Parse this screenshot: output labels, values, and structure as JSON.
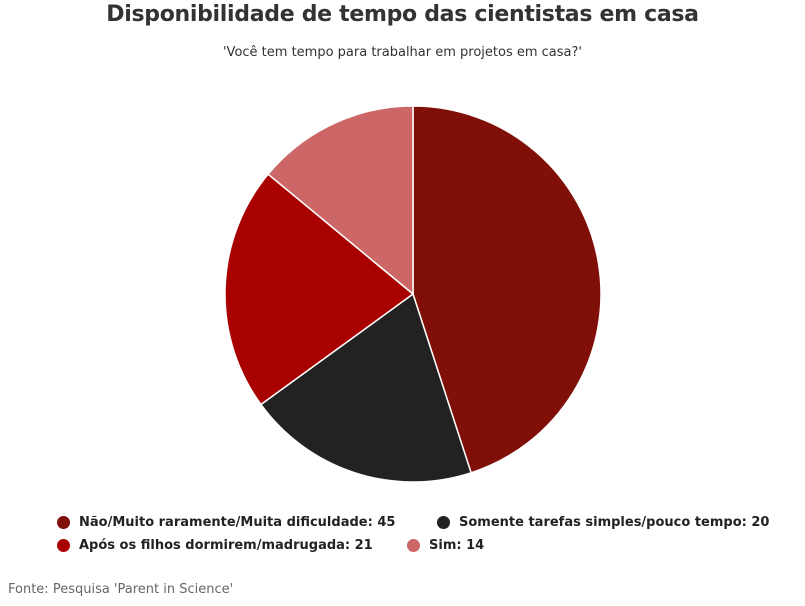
{
  "chart_data": {
    "type": "pie",
    "title": "Disponibilidade de tempo das cientistas em casa",
    "subtitle": "'Você tem tempo para trabalhar em projetos em casa?'",
    "slices": [
      {
        "label": "Não/Muito raramente/Muita dificuldade",
        "value": 45,
        "legend_text": "Não/Muito raramente/Muita dificuldade: 45",
        "color": "#7f0f07"
      },
      {
        "label": "Somente tarefas simples/pouco tempo",
        "value": 20,
        "legend_text": "Somente tarefas simples/pouco tempo: 20",
        "color": "#222222"
      },
      {
        "label": "Após os filhos dormirem/madrugada",
        "value": 21,
        "legend_text": "Após os filhos dormirem/madrugada: 21",
        "color": "#a90000"
      },
      {
        "label": "Sim",
        "value": 14,
        "legend_text": "Sim: 14",
        "color": "#cd6767"
      }
    ],
    "legend_placement": "bottom",
    "source": "Fonte: Pesquisa 'Parent in Science'"
  }
}
